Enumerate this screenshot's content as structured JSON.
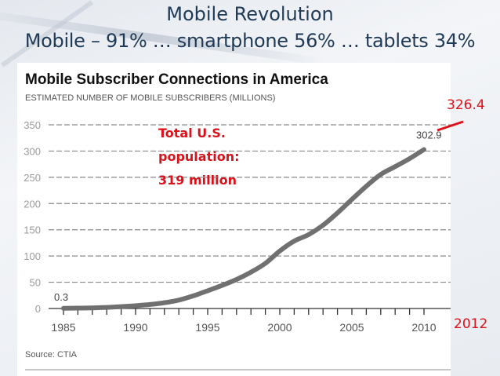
{
  "slide": {
    "title_line1": "Mobile Revolution",
    "title_line2": "Mobile – 91% … smartphone 56% … tablets 34%"
  },
  "annotations": {
    "population_lines": [
      "Total U.S.",
      "population:",
      "319 million"
    ],
    "projected_value": "326.4",
    "projected_year": "2012",
    "accent_color": "#d9121b"
  },
  "chart_data": {
    "type": "line",
    "title": "Mobile Subscriber Connections in America",
    "subtitle": "ESTIMATED NUMBER OF MOBILE SUBSCRIBERS (MILLIONS)",
    "xlabel": "",
    "ylabel": "",
    "source": "Source: CTIA",
    "x": [
      1985,
      1986,
      1987,
      1988,
      1989,
      1990,
      1991,
      1992,
      1993,
      1994,
      1995,
      1996,
      1997,
      1998,
      1999,
      2000,
      2001,
      2002,
      2003,
      2004,
      2005,
      2006,
      2007,
      2008,
      2009,
      2010
    ],
    "series": [
      {
        "name": "Mobile subscribers (millions)",
        "color": "#707070",
        "values": [
          0.3,
          0.7,
          1.2,
          2.1,
          3.5,
          5.3,
          7.6,
          11.0,
          16.0,
          24.1,
          33.8,
          44.0,
          55.3,
          69.2,
          86.0,
          109.5,
          128.4,
          140.8,
          158.7,
          182.1,
          207.9,
          233.0,
          255.4,
          270.3,
          285.6,
          302.9
        ]
      }
    ],
    "data_labels": [
      {
        "x": 1985,
        "text": "0.3"
      },
      {
        "x": 2010,
        "text": "302.9"
      }
    ],
    "xlim": [
      1985,
      2012
    ],
    "ylim": [
      0,
      350
    ],
    "yticks": [
      0,
      50,
      100,
      150,
      200,
      250,
      300,
      350
    ],
    "xticks_labeled": [
      1985,
      1990,
      1995,
      2000,
      2005,
      2010
    ],
    "xticks_minor_every": 1,
    "grid": "horizontal-dashed",
    "legend": "none"
  }
}
